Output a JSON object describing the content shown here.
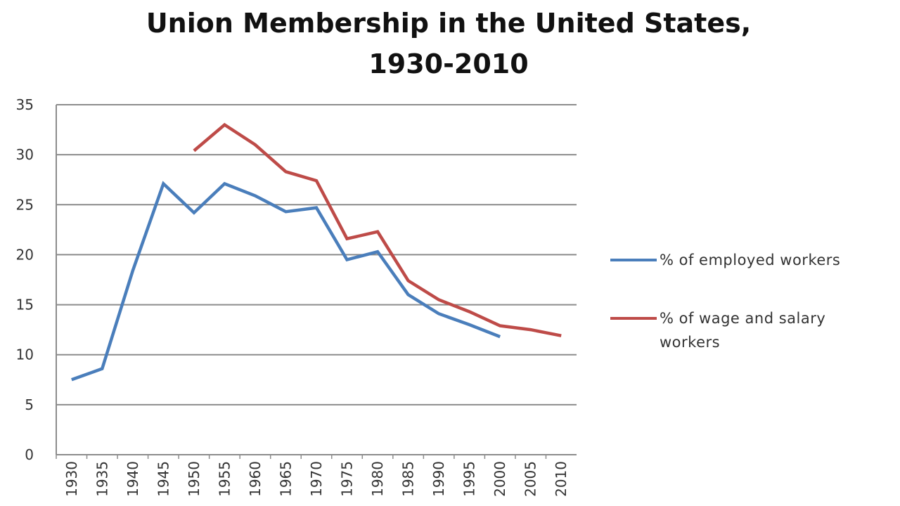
{
  "chart_data": {
    "type": "line",
    "title_line1": "Union Membership in the United States,",
    "title_line2": "1930-2010",
    "xlabel": "",
    "ylabel": "",
    "categories": [
      "1930",
      "1935",
      "1940",
      "1945",
      "1950",
      "1955",
      "1960",
      "1965",
      "1970",
      "1975",
      "1980",
      "1985",
      "1990",
      "1995",
      "2000",
      "2005",
      "2010"
    ],
    "ylim": [
      0,
      35
    ],
    "yticks": [
      0,
      5,
      10,
      15,
      20,
      25,
      30,
      35
    ],
    "grid": true,
    "legend_position": "right",
    "series": [
      {
        "name": "% of employed workers",
        "color": "#4a7ebb",
        "values": [
          7.5,
          8.6,
          18.4,
          27.1,
          24.2,
          27.1,
          25.9,
          24.3,
          24.7,
          19.5,
          20.3,
          16.0,
          14.1,
          13.0,
          11.8,
          null,
          null
        ]
      },
      {
        "name": "% of wage and salary workers",
        "color": "#be4b48",
        "values": [
          null,
          null,
          null,
          null,
          30.4,
          33.0,
          31.0,
          28.3,
          27.4,
          21.6,
          22.3,
          17.4,
          15.5,
          14.3,
          12.9,
          12.5,
          11.9
        ]
      }
    ]
  }
}
